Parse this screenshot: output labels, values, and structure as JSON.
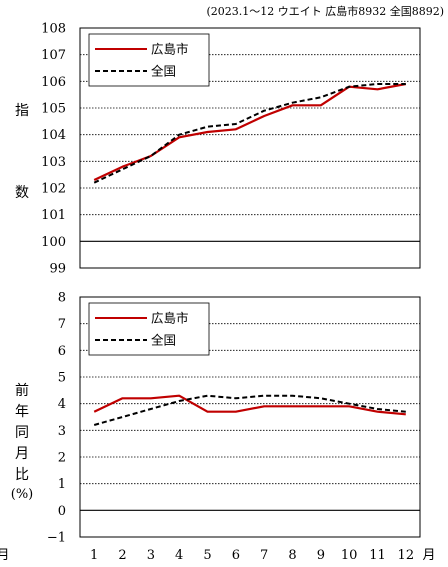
{
  "note": "(2023.1～12 ウエイト 広島市8932 全国8892)",
  "month_unit": "月",
  "stray_mark": "月",
  "chart_data": [
    {
      "type": "line",
      "ylabel_chars": [
        "指",
        "数"
      ],
      "ylim": [
        99,
        108
      ],
      "yticks": [
        99,
        100,
        101,
        102,
        103,
        104,
        105,
        106,
        107,
        108
      ],
      "categories": [
        "1",
        "2",
        "3",
        "4",
        "5",
        "6",
        "7",
        "8",
        "9",
        "10",
        "11",
        "12"
      ],
      "reference_line": 100,
      "grid": true,
      "legend_position": "top-left",
      "series": [
        {
          "name": "広島市",
          "color": "#c00000",
          "style": "solid",
          "values": [
            102.3,
            102.8,
            103.2,
            103.9,
            104.1,
            104.2,
            104.7,
            105.1,
            105.1,
            105.8,
            105.7,
            105.9
          ]
        },
        {
          "name": "全国",
          "color": "#000000",
          "style": "dashed",
          "values": [
            102.2,
            102.7,
            103.2,
            104.0,
            104.3,
            104.4,
            104.9,
            105.2,
            105.4,
            105.8,
            105.9,
            105.9
          ]
        }
      ]
    },
    {
      "type": "line",
      "ylabel_chars": [
        "前",
        "年",
        "同",
        "月",
        "比"
      ],
      "ylabel_unit": "(%)",
      "ylim": [
        -1,
        8
      ],
      "yticks": [
        -1,
        0,
        1,
        2,
        3,
        4,
        5,
        6,
        7,
        8
      ],
      "categories": [
        "1",
        "2",
        "3",
        "4",
        "5",
        "6",
        "7",
        "8",
        "9",
        "10",
        "11",
        "12"
      ],
      "reference_line": 0,
      "grid": true,
      "legend_position": "top-left",
      "series": [
        {
          "name": "広島市",
          "color": "#c00000",
          "style": "solid",
          "values": [
            3.7,
            4.2,
            4.2,
            4.3,
            3.7,
            3.7,
            3.9,
            3.9,
            3.9,
            3.9,
            3.7,
            3.6
          ]
        },
        {
          "name": "全国",
          "color": "#000000",
          "style": "dashed",
          "values": [
            3.2,
            3.5,
            3.8,
            4.1,
            4.3,
            4.2,
            4.3,
            4.3,
            4.2,
            4.0,
            3.8,
            3.7
          ]
        }
      ]
    }
  ]
}
